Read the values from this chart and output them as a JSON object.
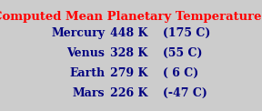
{
  "title": "Computed Mean Planetary Temperatures",
  "title_color": "#ff0000",
  "title_fontsize": 9.5,
  "background_color": "#cccccc",
  "rows": [
    {
      "planet": "Mercury",
      "temp_k": "448 K",
      "temp_c": "(175 C)"
    },
    {
      "planet": "Venus",
      "temp_k": "328 K",
      "temp_c": "(55 C)"
    },
    {
      "planet": "Earth",
      "temp_k": "279 K",
      "temp_c": "( 6 C)"
    },
    {
      "planet": "Mars",
      "temp_k": "226 K",
      "temp_c": "(-47 C)"
    }
  ],
  "text_color": "#000080",
  "text_fontsize": 9.0,
  "title_fontfamily": "serif",
  "text_fontfamily": "serif",
  "fig_width": 2.88,
  "fig_height": 1.22,
  "dpi": 100
}
